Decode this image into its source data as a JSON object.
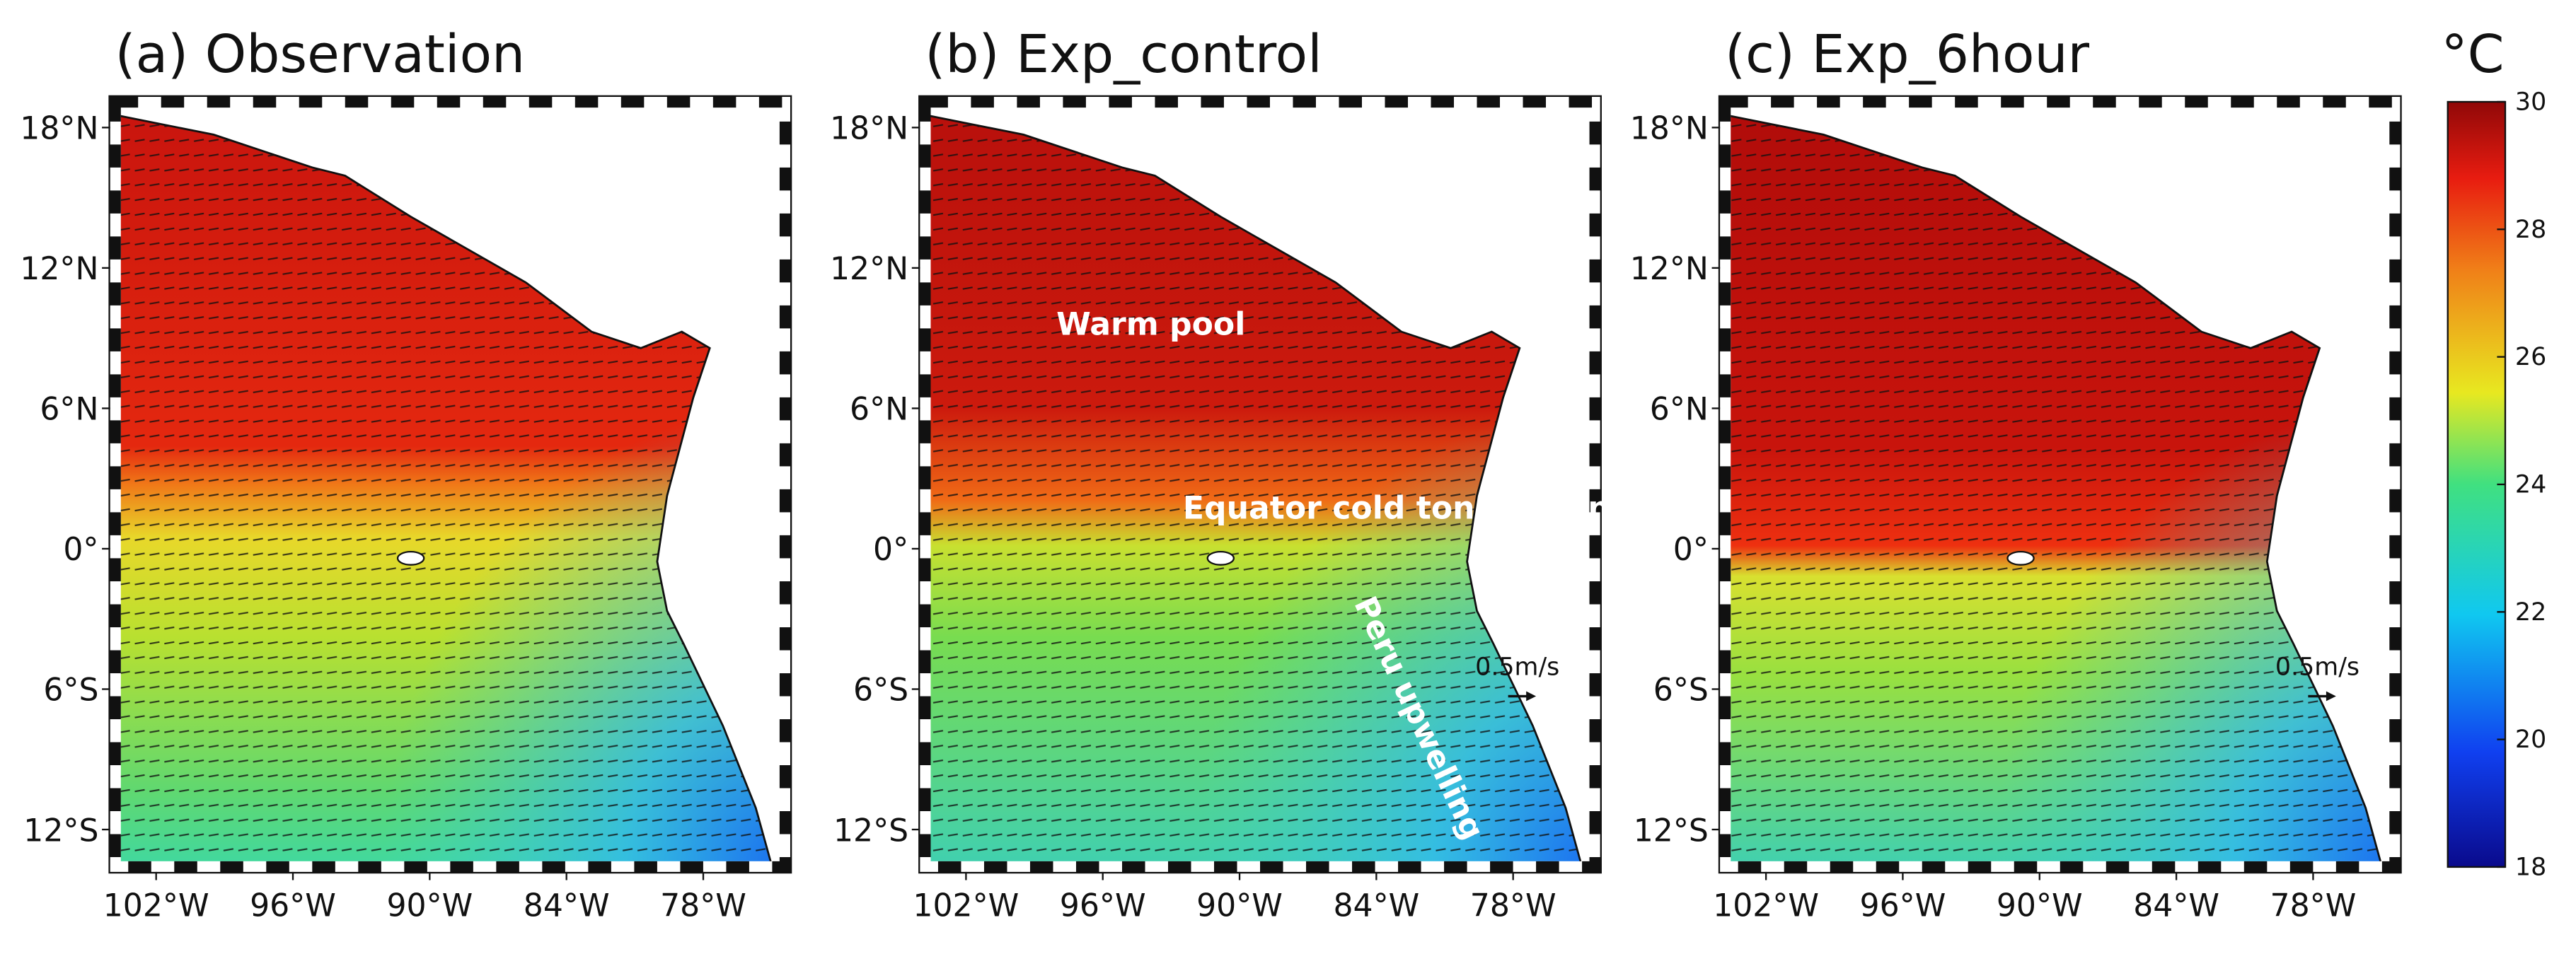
{
  "panels": [
    {
      "title": "(a) Observation"
    },
    {
      "title": "(b) Exp_control",
      "annotations": [
        "Warm pool",
        "Equator cold tongue tongue",
        "Peru upwelling"
      ],
      "scale_label": "0.5m/s"
    },
    {
      "title": "(c) Exp_6hour",
      "scale_label": "0.5m/s"
    }
  ],
  "axes": {
    "xlim": [
      -103.8,
      -74.4
    ],
    "ylim": [
      -13.6,
      19.1
    ],
    "xticks": [
      {
        "value": -102,
        "label": "102°W"
      },
      {
        "value": -96,
        "label": "96°W"
      },
      {
        "value": -90,
        "label": "90°W"
      },
      {
        "value": -84,
        "label": "84°W"
      },
      {
        "value": -78,
        "label": "78°W"
      }
    ],
    "yticks": [
      {
        "value": 18,
        "label": "18°N"
      },
      {
        "value": 12,
        "label": "12°N"
      },
      {
        "value": 6,
        "label": "6°N"
      },
      {
        "value": 0,
        "label": "0°"
      },
      {
        "value": -6,
        "label": "6°S"
      },
      {
        "value": -12,
        "label": "12°S"
      }
    ]
  },
  "colorbar": {
    "label": "°C",
    "lim": [
      18,
      30
    ],
    "ticks": [
      18,
      20,
      22,
      24,
      26,
      28,
      30
    ]
  }
}
